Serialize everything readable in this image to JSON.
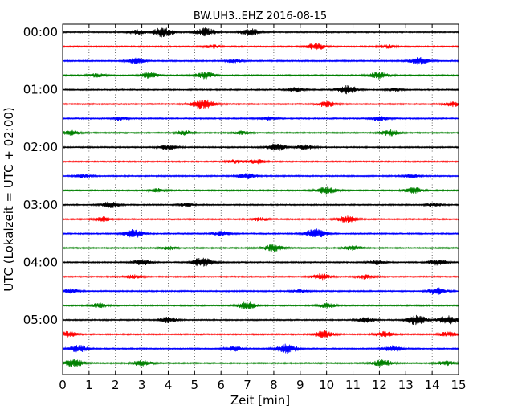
{
  "chart_data": {
    "type": "line",
    "title": "BW.UH3..EHZ 2016-08-15",
    "xlabel": "Zeit  [min]",
    "ylabel": "UTC (Lokalzeit = UTC + 02:00)",
    "xlim": [
      0,
      15
    ],
    "x_ticks": [
      "0",
      "1",
      "2",
      "3",
      "4",
      "5",
      "6",
      "7",
      "8",
      "9",
      "10",
      "11",
      "12",
      "13",
      "14",
      "15"
    ],
    "y_ticks": [
      "00:00",
      "01:00",
      "02:00",
      "03:00",
      "04:00",
      "05:00"
    ],
    "grid": "vertical dotted",
    "trace_interval_min": 15,
    "trace_count": 24,
    "color_cycle": [
      "#000000",
      "#ff0000",
      "#0000ff",
      "#008000"
    ],
    "traces": [
      {
        "start": "00:00",
        "color": "#000000",
        "bursts": [
          [
            3.8,
            0.8
          ],
          [
            5.4,
            0.7
          ],
          [
            7.1,
            0.6
          ],
          [
            2.8,
            0.4
          ]
        ]
      },
      {
        "start": "00:15",
        "color": "#ff0000",
        "bursts": [
          [
            9.6,
            0.6
          ],
          [
            5.7,
            0.3
          ],
          [
            12.3,
            0.3
          ]
        ]
      },
      {
        "start": "00:30",
        "color": "#0000ff",
        "bursts": [
          [
            2.8,
            0.5
          ],
          [
            13.5,
            0.6
          ],
          [
            6.5,
            0.3
          ]
        ]
      },
      {
        "start": "00:45",
        "color": "#008000",
        "bursts": [
          [
            5.4,
            0.6
          ],
          [
            3.3,
            0.5
          ],
          [
            12.0,
            0.6
          ],
          [
            1.3,
            0.3
          ]
        ]
      },
      {
        "start": "01:00",
        "color": "#000000",
        "bursts": [
          [
            10.8,
            0.7
          ],
          [
            8.8,
            0.4
          ],
          [
            12.6,
            0.3
          ]
        ]
      },
      {
        "start": "01:15",
        "color": "#ff0000",
        "bursts": [
          [
            5.3,
            0.9
          ],
          [
            10.0,
            0.5
          ],
          [
            14.8,
            0.4
          ]
        ]
      },
      {
        "start": "01:30",
        "color": "#0000ff",
        "bursts": [
          [
            2.2,
            0.3
          ],
          [
            12.0,
            0.4
          ],
          [
            7.8,
            0.3
          ]
        ]
      },
      {
        "start": "01:45",
        "color": "#008000",
        "bursts": [
          [
            0.3,
            0.4
          ],
          [
            4.6,
            0.4
          ],
          [
            12.4,
            0.5
          ],
          [
            6.8,
            0.3
          ]
        ]
      },
      {
        "start": "02:00",
        "color": "#000000",
        "bursts": [
          [
            8.1,
            0.6
          ],
          [
            4.0,
            0.4
          ],
          [
            9.2,
            0.4
          ]
        ]
      },
      {
        "start": "02:15",
        "color": "#ff0000",
        "bursts": [
          [
            7.3,
            0.4
          ],
          [
            6.5,
            0.3
          ]
        ]
      },
      {
        "start": "02:30",
        "color": "#0000ff",
        "bursts": [
          [
            7.0,
            0.5
          ],
          [
            0.8,
            0.3
          ],
          [
            13.2,
            0.3
          ]
        ]
      },
      {
        "start": "02:45",
        "color": "#008000",
        "bursts": [
          [
            10.0,
            0.6
          ],
          [
            13.3,
            0.5
          ],
          [
            3.6,
            0.3
          ]
        ]
      },
      {
        "start": "03:00",
        "color": "#000000",
        "bursts": [
          [
            1.8,
            0.5
          ],
          [
            4.7,
            0.3
          ],
          [
            14.1,
            0.3
          ]
        ]
      },
      {
        "start": "03:15",
        "color": "#ff0000",
        "bursts": [
          [
            10.8,
            0.6
          ],
          [
            1.5,
            0.4
          ],
          [
            7.5,
            0.3
          ]
        ]
      },
      {
        "start": "03:30",
        "color": "#0000ff",
        "bursts": [
          [
            9.6,
            0.8
          ],
          [
            2.7,
            0.7
          ],
          [
            6.0,
            0.4
          ]
        ]
      },
      {
        "start": "03:45",
        "color": "#008000",
        "bursts": [
          [
            8.0,
            0.6
          ],
          [
            11.0,
            0.4
          ],
          [
            4.0,
            0.3
          ]
        ]
      },
      {
        "start": "04:00",
        "color": "#000000",
        "bursts": [
          [
            5.3,
            0.8
          ],
          [
            3.0,
            0.5
          ],
          [
            14.2,
            0.5
          ],
          [
            11.9,
            0.4
          ]
        ]
      },
      {
        "start": "04:15",
        "color": "#ff0000",
        "bursts": [
          [
            9.8,
            0.5
          ],
          [
            11.5,
            0.4
          ],
          [
            2.7,
            0.3
          ]
        ]
      },
      {
        "start": "04:30",
        "color": "#0000ff",
        "bursts": [
          [
            14.2,
            0.6
          ],
          [
            0.3,
            0.4
          ],
          [
            9.0,
            0.3
          ]
        ]
      },
      {
        "start": "04:45",
        "color": "#008000",
        "bursts": [
          [
            7.0,
            0.6
          ],
          [
            1.4,
            0.4
          ],
          [
            10.0,
            0.4
          ]
        ]
      },
      {
        "start": "05:00",
        "color": "#000000",
        "bursts": [
          [
            13.4,
            0.8
          ],
          [
            14.6,
            0.7
          ],
          [
            4.0,
            0.5
          ],
          [
            11.5,
            0.4
          ]
        ]
      },
      {
        "start": "05:15",
        "color": "#ff0000",
        "bursts": [
          [
            9.9,
            0.6
          ],
          [
            0.2,
            0.5
          ],
          [
            12.2,
            0.5
          ],
          [
            14.6,
            0.4
          ]
        ]
      },
      {
        "start": "05:30",
        "color": "#0000ff",
        "bursts": [
          [
            0.6,
            0.6
          ],
          [
            8.5,
            0.8
          ],
          [
            12.5,
            0.5
          ],
          [
            6.5,
            0.4
          ]
        ]
      },
      {
        "start": "05:45",
        "color": "#008000",
        "bursts": [
          [
            0.4,
            0.7
          ],
          [
            3.0,
            0.5
          ],
          [
            12.1,
            0.6
          ],
          [
            14.5,
            0.4
          ]
        ]
      }
    ]
  }
}
